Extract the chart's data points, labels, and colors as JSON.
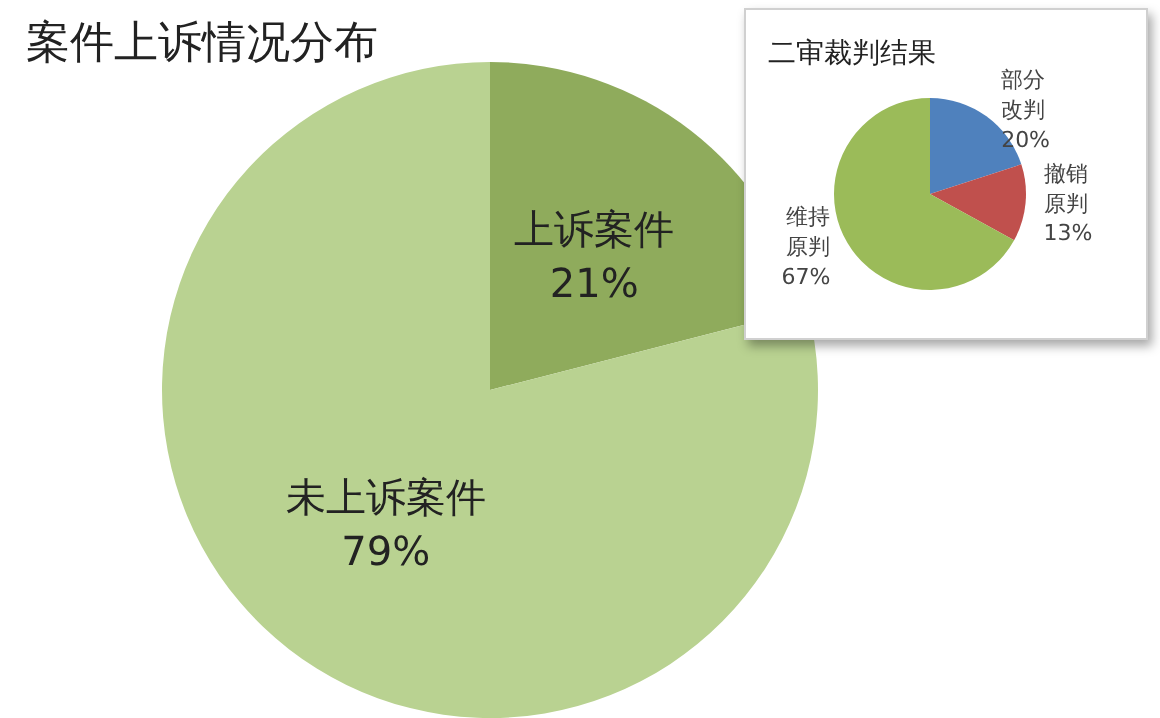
{
  "chart_data": [
    {
      "type": "pie",
      "title": "案件上诉情况分布",
      "categories": [
        "上诉案件",
        "未上诉案件"
      ],
      "values": [
        21,
        79
      ],
      "value_labels": [
        "21%",
        "79%"
      ],
      "colors": [
        "#8fab5c",
        "#b9d291"
      ]
    },
    {
      "type": "pie",
      "title": "二审裁判结果",
      "categories": [
        "部分改判",
        "撤销原判",
        "维持原判"
      ],
      "values": [
        20,
        13,
        67
      ],
      "value_labels": [
        "20%",
        "13%",
        "67%"
      ],
      "colors": [
        "#4f81bd",
        "#c0504d",
        "#9bbb59"
      ]
    }
  ]
}
